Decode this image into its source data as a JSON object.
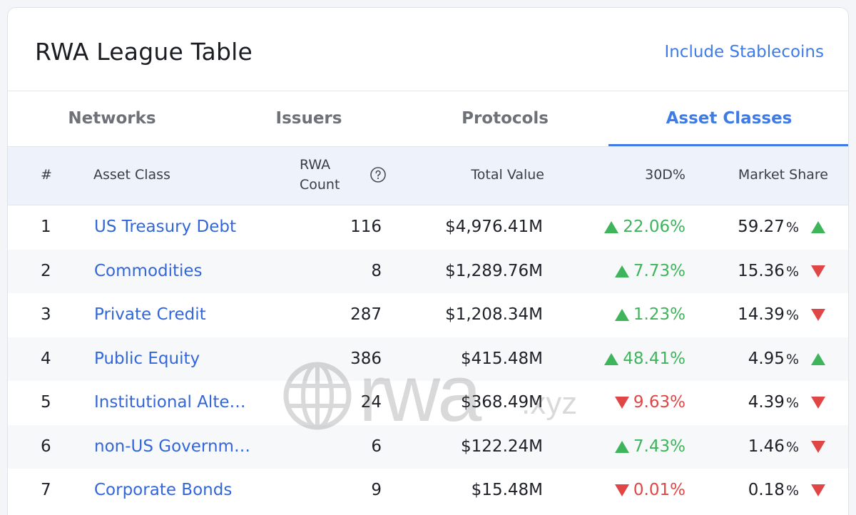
{
  "header": {
    "title": "RWA League Table",
    "toggle_label": "Include Stablecoins"
  },
  "tabs": [
    {
      "label": "Networks",
      "active": false
    },
    {
      "label": "Issuers",
      "active": false
    },
    {
      "label": "Protocols",
      "active": false
    },
    {
      "label": "Asset Classes",
      "active": true
    }
  ],
  "columns": {
    "rank": "#",
    "asset_class": "Asset Class",
    "rwa_count_line1": "RWA",
    "rwa_count_line2": "Count",
    "total_value": "Total Value",
    "change_30d": "30D%",
    "market_share": "Market Share"
  },
  "rows": [
    {
      "rank": "1",
      "name": "US Treasury Debt",
      "count": "116",
      "total": "$4,976.41M",
      "change": "22.06%",
      "change_dir": "up",
      "share": "59.27",
      "share_dir": "up"
    },
    {
      "rank": "2",
      "name": "Commodities",
      "count": "8",
      "total": "$1,289.76M",
      "change": "7.73%",
      "change_dir": "up",
      "share": "15.36",
      "share_dir": "down"
    },
    {
      "rank": "3",
      "name": "Private Credit",
      "count": "287",
      "total": "$1,208.34M",
      "change": "1.23%",
      "change_dir": "up",
      "share": "14.39",
      "share_dir": "down"
    },
    {
      "rank": "4",
      "name": "Public Equity",
      "count": "386",
      "total": "$415.48M",
      "change": "48.41%",
      "change_dir": "up",
      "share": "4.95",
      "share_dir": "up"
    },
    {
      "rank": "5",
      "name": "Institutional Alte…",
      "count": "24",
      "total": "$368.49M",
      "change": "9.63%",
      "change_dir": "down",
      "share": "4.39",
      "share_dir": "down"
    },
    {
      "rank": "6",
      "name": "non-US Governm…",
      "count": "6",
      "total": "$122.24M",
      "change": "7.43%",
      "change_dir": "up",
      "share": "1.46",
      "share_dir": "down"
    },
    {
      "rank": "7",
      "name": "Corporate Bonds",
      "count": "9",
      "total": "$15.48M",
      "change": "0.01%",
      "change_dir": "down",
      "share": "0.18",
      "share_dir": "down"
    }
  ],
  "share_unit": "%",
  "watermark": {
    "brand": "rwa",
    "suffix": ".xyz",
    "icon": "globe-icon"
  },
  "colors": {
    "accent": "#3f7be6",
    "up": "#3eb45b",
    "down": "#e04646"
  }
}
